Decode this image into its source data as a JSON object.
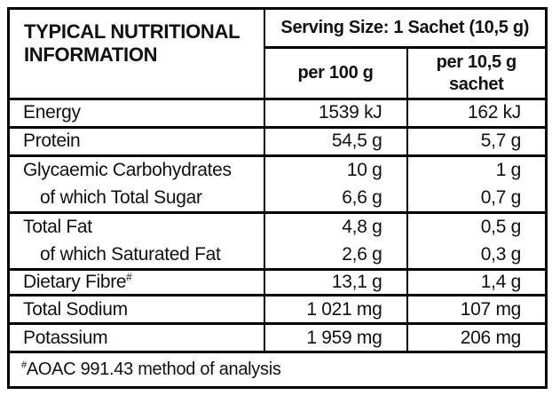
{
  "header": {
    "title": "TYPICAL NUTRITIONAL INFORMATION",
    "serving_size": "Serving Size: 1 Sachet (10,5 g)",
    "col_per_100g": "per 100 g",
    "col_per_sachet_line1": "per 10,5 g",
    "col_per_sachet_line2": "sachet"
  },
  "rows": [
    {
      "label": "Energy",
      "per_100g": "1539 kJ",
      "per_sachet": "162 kJ"
    },
    {
      "label": "Protein",
      "per_100g": "54,5 g",
      "per_sachet": "5,7 g"
    },
    {
      "label": "Glycaemic Carbohydrates",
      "per_100g": "10 g",
      "per_sachet": "1 g"
    },
    {
      "label": "of which Total Sugar",
      "per_100g": "6,6 g",
      "per_sachet": "0,7 g"
    },
    {
      "label": "Total Fat",
      "per_100g": "4,8 g",
      "per_sachet": "0,5 g"
    },
    {
      "label": "of which Saturated Fat",
      "per_100g": "2,6 g",
      "per_sachet": "0,3 g"
    },
    {
      "label": "Dietary Fibre",
      "label_sup": "#",
      "per_100g": "13,1 g",
      "per_sachet": "1,4 g"
    },
    {
      "label": "Total Sodium",
      "per_100g": "1 021 mg",
      "per_sachet": "107 mg"
    },
    {
      "label": "Potassium",
      "per_100g": "1 959 mg",
      "per_sachet": "206 mg"
    }
  ],
  "footnote": {
    "sup": "#",
    "text": "AOAC 991.43 method of analysis"
  },
  "colors": {
    "text": "#111111",
    "border": "#000000",
    "background": "#ffffff"
  }
}
